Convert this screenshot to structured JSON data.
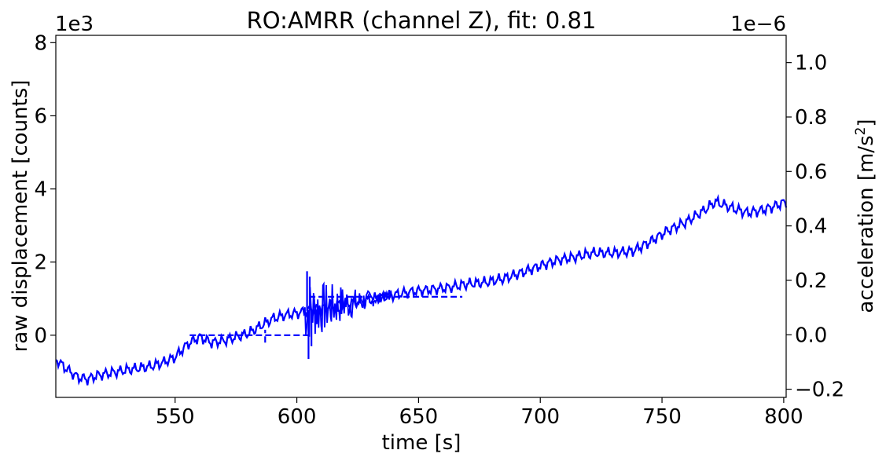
{
  "chart_data": {
    "type": "line",
    "title": "RO:AMRR  (channel Z), fit: 0.81",
    "xlabel": "time [s]",
    "ylabel_left": "raw displacement [counts]",
    "ylabel_right_main": "acceleration [m/s",
    "ylabel_right_sup": "2",
    "ylabel_right_end": "]",
    "left_offset_text": "1e3",
    "right_offset_text": "1e−6",
    "xlim": [
      501,
      801
    ],
    "ylim_left": [
      -1700,
      8200
    ],
    "ylim_right": [
      -0.23,
      1.1
    ],
    "x_ticks": [
      550,
      600,
      650,
      700,
      750,
      800
    ],
    "x_tick_labels": [
      "550",
      "600",
      "650",
      "700",
      "750",
      "800"
    ],
    "y_left_ticks": [
      0,
      2000,
      4000,
      6000,
      8000
    ],
    "y_left_tick_labels": [
      "0",
      "2",
      "4",
      "6",
      "8"
    ],
    "y_right_ticks": [
      -0.2,
      0.0,
      0.2,
      0.4,
      0.6,
      0.8,
      1.0
    ],
    "y_right_tick_labels": [
      "−0.2",
      "0.0",
      "0.2",
      "0.4",
      "0.6",
      "0.8",
      "1.0"
    ],
    "colors": {
      "series": "#0000ff",
      "axis": "#000000"
    },
    "series": [
      {
        "style": "solid",
        "axis": "left",
        "x": [
          501,
          505,
          510,
          514,
          518,
          522,
          526,
          530,
          535,
          540,
          545,
          550,
          555,
          560,
          565,
          570,
          575,
          580,
          585,
          590,
          595,
          600,
          603,
          607,
          612,
          618,
          625,
          632,
          640,
          648,
          655,
          662,
          670,
          678,
          685,
          692,
          700,
          707,
          715,
          722,
          730,
          738,
          745,
          752,
          760,
          767,
          772,
          776,
          780,
          785,
          790,
          795,
          801
        ],
        "y": [
          -650,
          -900,
          -1150,
          -1200,
          -1100,
          -1050,
          -1000,
          -950,
          -900,
          -850,
          -750,
          -600,
          -250,
          -50,
          -200,
          -150,
          -50,
          50,
          250,
          450,
          550,
          600,
          650,
          700,
          750,
          850,
          900,
          1000,
          1100,
          1200,
          1250,
          1300,
          1400,
          1450,
          1550,
          1700,
          1900,
          2050,
          2150,
          2250,
          2250,
          2300,
          2550,
          2850,
          3100,
          3400,
          3650,
          3550,
          3450,
          3350,
          3400,
          3500,
          3650
        ]
      },
      {
        "style": "dashed",
        "axis": "left",
        "x": [
          556,
          605
        ],
        "y": [
          0,
          0
        ]
      },
      {
        "style": "dashed",
        "axis": "left",
        "x": [
          605,
          668
        ],
        "y": [
          1050,
          1050
        ]
      },
      {
        "style": "dashed",
        "axis": "left",
        "x": [
          587,
          587
        ],
        "y": [
          -200,
          150
        ]
      }
    ],
    "noise_burst": {
      "axis": "left",
      "x_range": [
        603,
        640
      ],
      "y_min": -650,
      "y_max": 1750
    }
  }
}
